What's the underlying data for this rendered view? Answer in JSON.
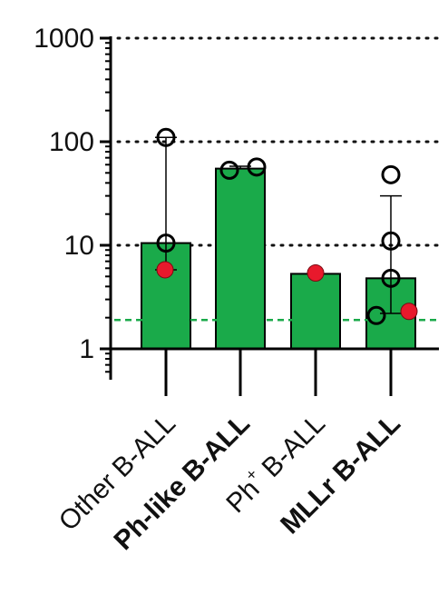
{
  "chart_data": {
    "type": "bar",
    "y_scale": "log",
    "ylim": [
      1,
      1000
    ],
    "y_ticks": [
      {
        "value": 1,
        "label": "1"
      },
      {
        "value": 10,
        "label": "10"
      },
      {
        "value": 100,
        "label": "100"
      },
      {
        "value": 1000,
        "label": "1000"
      }
    ],
    "grid": "dotted at 10, 100, 1000",
    "categories": [
      {
        "label": "Other B-ALL",
        "bold": false,
        "superscript": ""
      },
      {
        "label": "Ph-like B-ALL",
        "bold": true,
        "superscript": ""
      },
      {
        "label": "Ph B-ALL",
        "bold": false,
        "superscript": "+"
      },
      {
        "label": "MLLr B-ALL",
        "bold": true,
        "superscript": ""
      }
    ],
    "values": [
      10.5,
      55,
      5.3,
      4.8
    ],
    "error_bars": [
      {
        "low": 5.8,
        "high": 110
      },
      {
        "low": 55,
        "high": 58
      },
      null,
      {
        "low": 2.2,
        "high": 30
      }
    ],
    "points": [
      [
        {
          "y": 110,
          "fill": "open"
        },
        {
          "y": 10.5,
          "fill": "open"
        },
        {
          "y": 5.8,
          "fill": "red"
        }
      ],
      [
        {
          "y": 53,
          "fill": "open"
        },
        {
          "y": 57,
          "fill": "open"
        }
      ],
      [
        {
          "y": 5.4,
          "fill": "red"
        }
      ],
      [
        {
          "y": 48,
          "fill": "open"
        },
        {
          "y": 11,
          "fill": "open"
        },
        {
          "y": 4.8,
          "fill": "open"
        },
        {
          "y": 2.1,
          "fill": "open"
        },
        {
          "y": 2.3,
          "fill": "red"
        }
      ]
    ],
    "threshold_line": 1.9,
    "colors": {
      "bar": "#1aaa4a",
      "bar_edge": "#000000",
      "red_point": "#e8192c",
      "threshold": "#1aaa4a"
    }
  }
}
